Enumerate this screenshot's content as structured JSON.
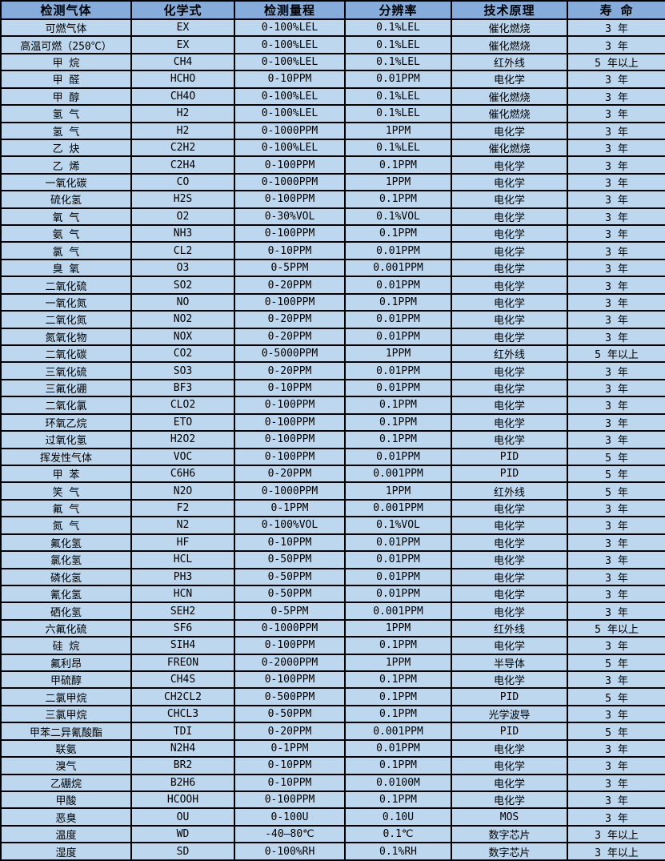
{
  "table": {
    "column_keys": [
      "gas",
      "formula",
      "range",
      "resolution",
      "principle",
      "lifespan"
    ],
    "columns": [
      "检测气体",
      "化学式",
      "检测量程",
      "分辨率",
      "技术原理",
      "寿 命"
    ],
    "rows": [
      [
        "可燃气体",
        "EX",
        "0-100%LEL",
        "0.1%LEL",
        "催化燃烧",
        "3 年"
      ],
      [
        "高温可燃（250℃）",
        "EX",
        "0-100%LEL",
        "0.1%LEL",
        "催化燃烧",
        "3 年"
      ],
      [
        "甲 烷",
        "CH4",
        "0-100%LEL",
        "0.1%LEL",
        "红外线",
        "5 年以上"
      ],
      [
        "甲 醛",
        "HCHO",
        "0-10PPM",
        "0.01PPM",
        "电化学",
        "3 年"
      ],
      [
        "甲 醇",
        "CH4O",
        "0-100%LEL",
        "0.1%LEL",
        "催化燃烧",
        "3 年"
      ],
      [
        "氢 气",
        "H2",
        "0-100%LEL",
        "0.1%LEL",
        "催化燃烧",
        "3 年"
      ],
      [
        "氢 气",
        "H2",
        "0-1000PPM",
        "1PPM",
        "电化学",
        "3 年"
      ],
      [
        "乙 炔",
        "C2H2",
        "0-100%LEL",
        "0.1%LEL",
        "催化燃烧",
        "3 年"
      ],
      [
        "乙 烯",
        "C2H4",
        "0-100PPM",
        "0.1PPM",
        "电化学",
        "3 年"
      ],
      [
        "一氧化碳",
        "CO",
        "0-1000PPM",
        "1PPM",
        "电化学",
        "3 年"
      ],
      [
        "硫化氢",
        "H2S",
        "0-100PPM",
        "0.1PPM",
        "电化学",
        "3 年"
      ],
      [
        "氧 气",
        "O2",
        "0-30%VOL",
        "0.1%VOL",
        "电化学",
        "3 年"
      ],
      [
        "氨 气",
        "NH3",
        "0-100PPM",
        "0.1PPM",
        "电化学",
        "3 年"
      ],
      [
        "氯 气",
        "CL2",
        "0-10PPM",
        "0.01PPM",
        "电化学",
        "3 年"
      ],
      [
        "臭 氧",
        "O3",
        "0-5PPM",
        "0.001PPM",
        "电化学",
        "3 年"
      ],
      [
        "二氧化硫",
        "SO2",
        "0-20PPM",
        "0.01PPM",
        "电化学",
        "3 年"
      ],
      [
        "一氧化氮",
        "NO",
        "0-100PPM",
        "0.1PPM",
        "电化学",
        "3 年"
      ],
      [
        "二氧化氮",
        "NO2",
        "0-20PPM",
        "0.01PPM",
        "电化学",
        "3 年"
      ],
      [
        "氮氧化物",
        "NOX",
        "0-20PPM",
        "0.01PPM",
        "电化学",
        "3 年"
      ],
      [
        "二氧化碳",
        "CO2",
        "0-5000PPM",
        "1PPM",
        "红外线",
        "5 年以上"
      ],
      [
        "三氧化硫",
        "SO3",
        "0-20PPM",
        "0.01PPM",
        "电化学",
        "3 年"
      ],
      [
        "三氟化硼",
        "BF3",
        "0-10PPM",
        "0.01PPM",
        "电化学",
        "3 年"
      ],
      [
        "二氧化氯",
        "CLO2",
        "0-100PPM",
        "0.1PPM",
        "电化学",
        "3 年"
      ],
      [
        "环氧乙烷",
        "ETO",
        "0-100PPM",
        "0.1PPM",
        "电化学",
        "3 年"
      ],
      [
        "过氧化氢",
        "H2O2",
        "0-100PPM",
        "0.1PPM",
        "电化学",
        "3 年"
      ],
      [
        "挥发性气体",
        "VOC",
        "0-100PPM",
        "0.01PPM",
        "PID",
        "5 年"
      ],
      [
        "甲 苯",
        "C6H6",
        "0-20PPM",
        "0.001PPM",
        "PID",
        "5 年"
      ],
      [
        "笑 气",
        "N2O",
        "0-1000PPM",
        "1PPM",
        "红外线",
        "5 年"
      ],
      [
        "氟 气",
        "F2",
        "0-1PPM",
        "0.001PPM",
        "电化学",
        "3 年"
      ],
      [
        "氮 气",
        "N2",
        "0-100%VOL",
        "0.1%VOL",
        "电化学",
        "3 年"
      ],
      [
        "氟化氢",
        "HF",
        "0-10PPM",
        "0.01PPM",
        "电化学",
        "3 年"
      ],
      [
        "氯化氢",
        "HCL",
        "0-50PPM",
        "0.01PPM",
        "电化学",
        "3 年"
      ],
      [
        "磷化氢",
        "PH3",
        "0-50PPM",
        "0.01PPM",
        "电化学",
        "3 年"
      ],
      [
        "氰化氢",
        "HCN",
        "0-50PPM",
        "0.01PPM",
        "电化学",
        "3 年"
      ],
      [
        "硒化氢",
        "SEH2",
        "0-5PPM",
        "0.001PPM",
        "电化学",
        "3 年"
      ],
      [
        "六氟化硫",
        "SF6",
        "0-1000PPM",
        "1PPM",
        "红外线",
        "5 年以上"
      ],
      [
        "硅 烷",
        "SIH4",
        "0-100PPM",
        "0.1PPM",
        "电化学",
        "3 年"
      ],
      [
        "氟利昂",
        "FREON",
        "0-2000PPM",
        "1PPM",
        "半导体",
        "5 年"
      ],
      [
        "甲硫醇",
        "CH4S",
        "0-100PPM",
        "0.1PPM",
        "电化学",
        "3 年"
      ],
      [
        "二氯甲烷",
        "CH2CL2",
        "0-500PPM",
        "0.1PPM",
        "PID",
        "5 年"
      ],
      [
        "三氯甲烷",
        "CHCL3",
        "0-50PPM",
        "0.1PPM",
        "光学波导",
        "3 年"
      ],
      [
        "甲苯二异氰酸酯",
        "TDI",
        "0-20PPM",
        "0.001PPM",
        "PID",
        "5 年"
      ],
      [
        "联氨",
        "N2H4",
        "0-1PPM",
        "0.01PPM",
        "电化学",
        "3 年"
      ],
      [
        "溴气",
        "BR2",
        "0-10PPM",
        "0.1PPM",
        "电化学",
        "3 年"
      ],
      [
        "乙硼烷",
        "B2H6",
        "0-10PPM",
        "0.0100M",
        "电化学",
        "3 年"
      ],
      [
        "甲酸",
        "HCOOH",
        "0-100PPM",
        "0.1PPM",
        "电化学",
        "3 年"
      ],
      [
        "恶臭",
        "OU",
        "0-100U",
        "0.10U",
        "MOS",
        "3 年"
      ],
      [
        "温度",
        "WD",
        "-40—80℃",
        "0.1℃",
        "数字芯片",
        "3 年以上"
      ],
      [
        "湿度",
        "SD",
        "0-100%RH",
        "0.1%RH",
        "数字芯片",
        "3 年以上"
      ]
    ],
    "colors": {
      "header_bg": "#85ACDB",
      "row_bg": "#BDD7EE",
      "border": "#000000",
      "text": "#000000"
    }
  }
}
